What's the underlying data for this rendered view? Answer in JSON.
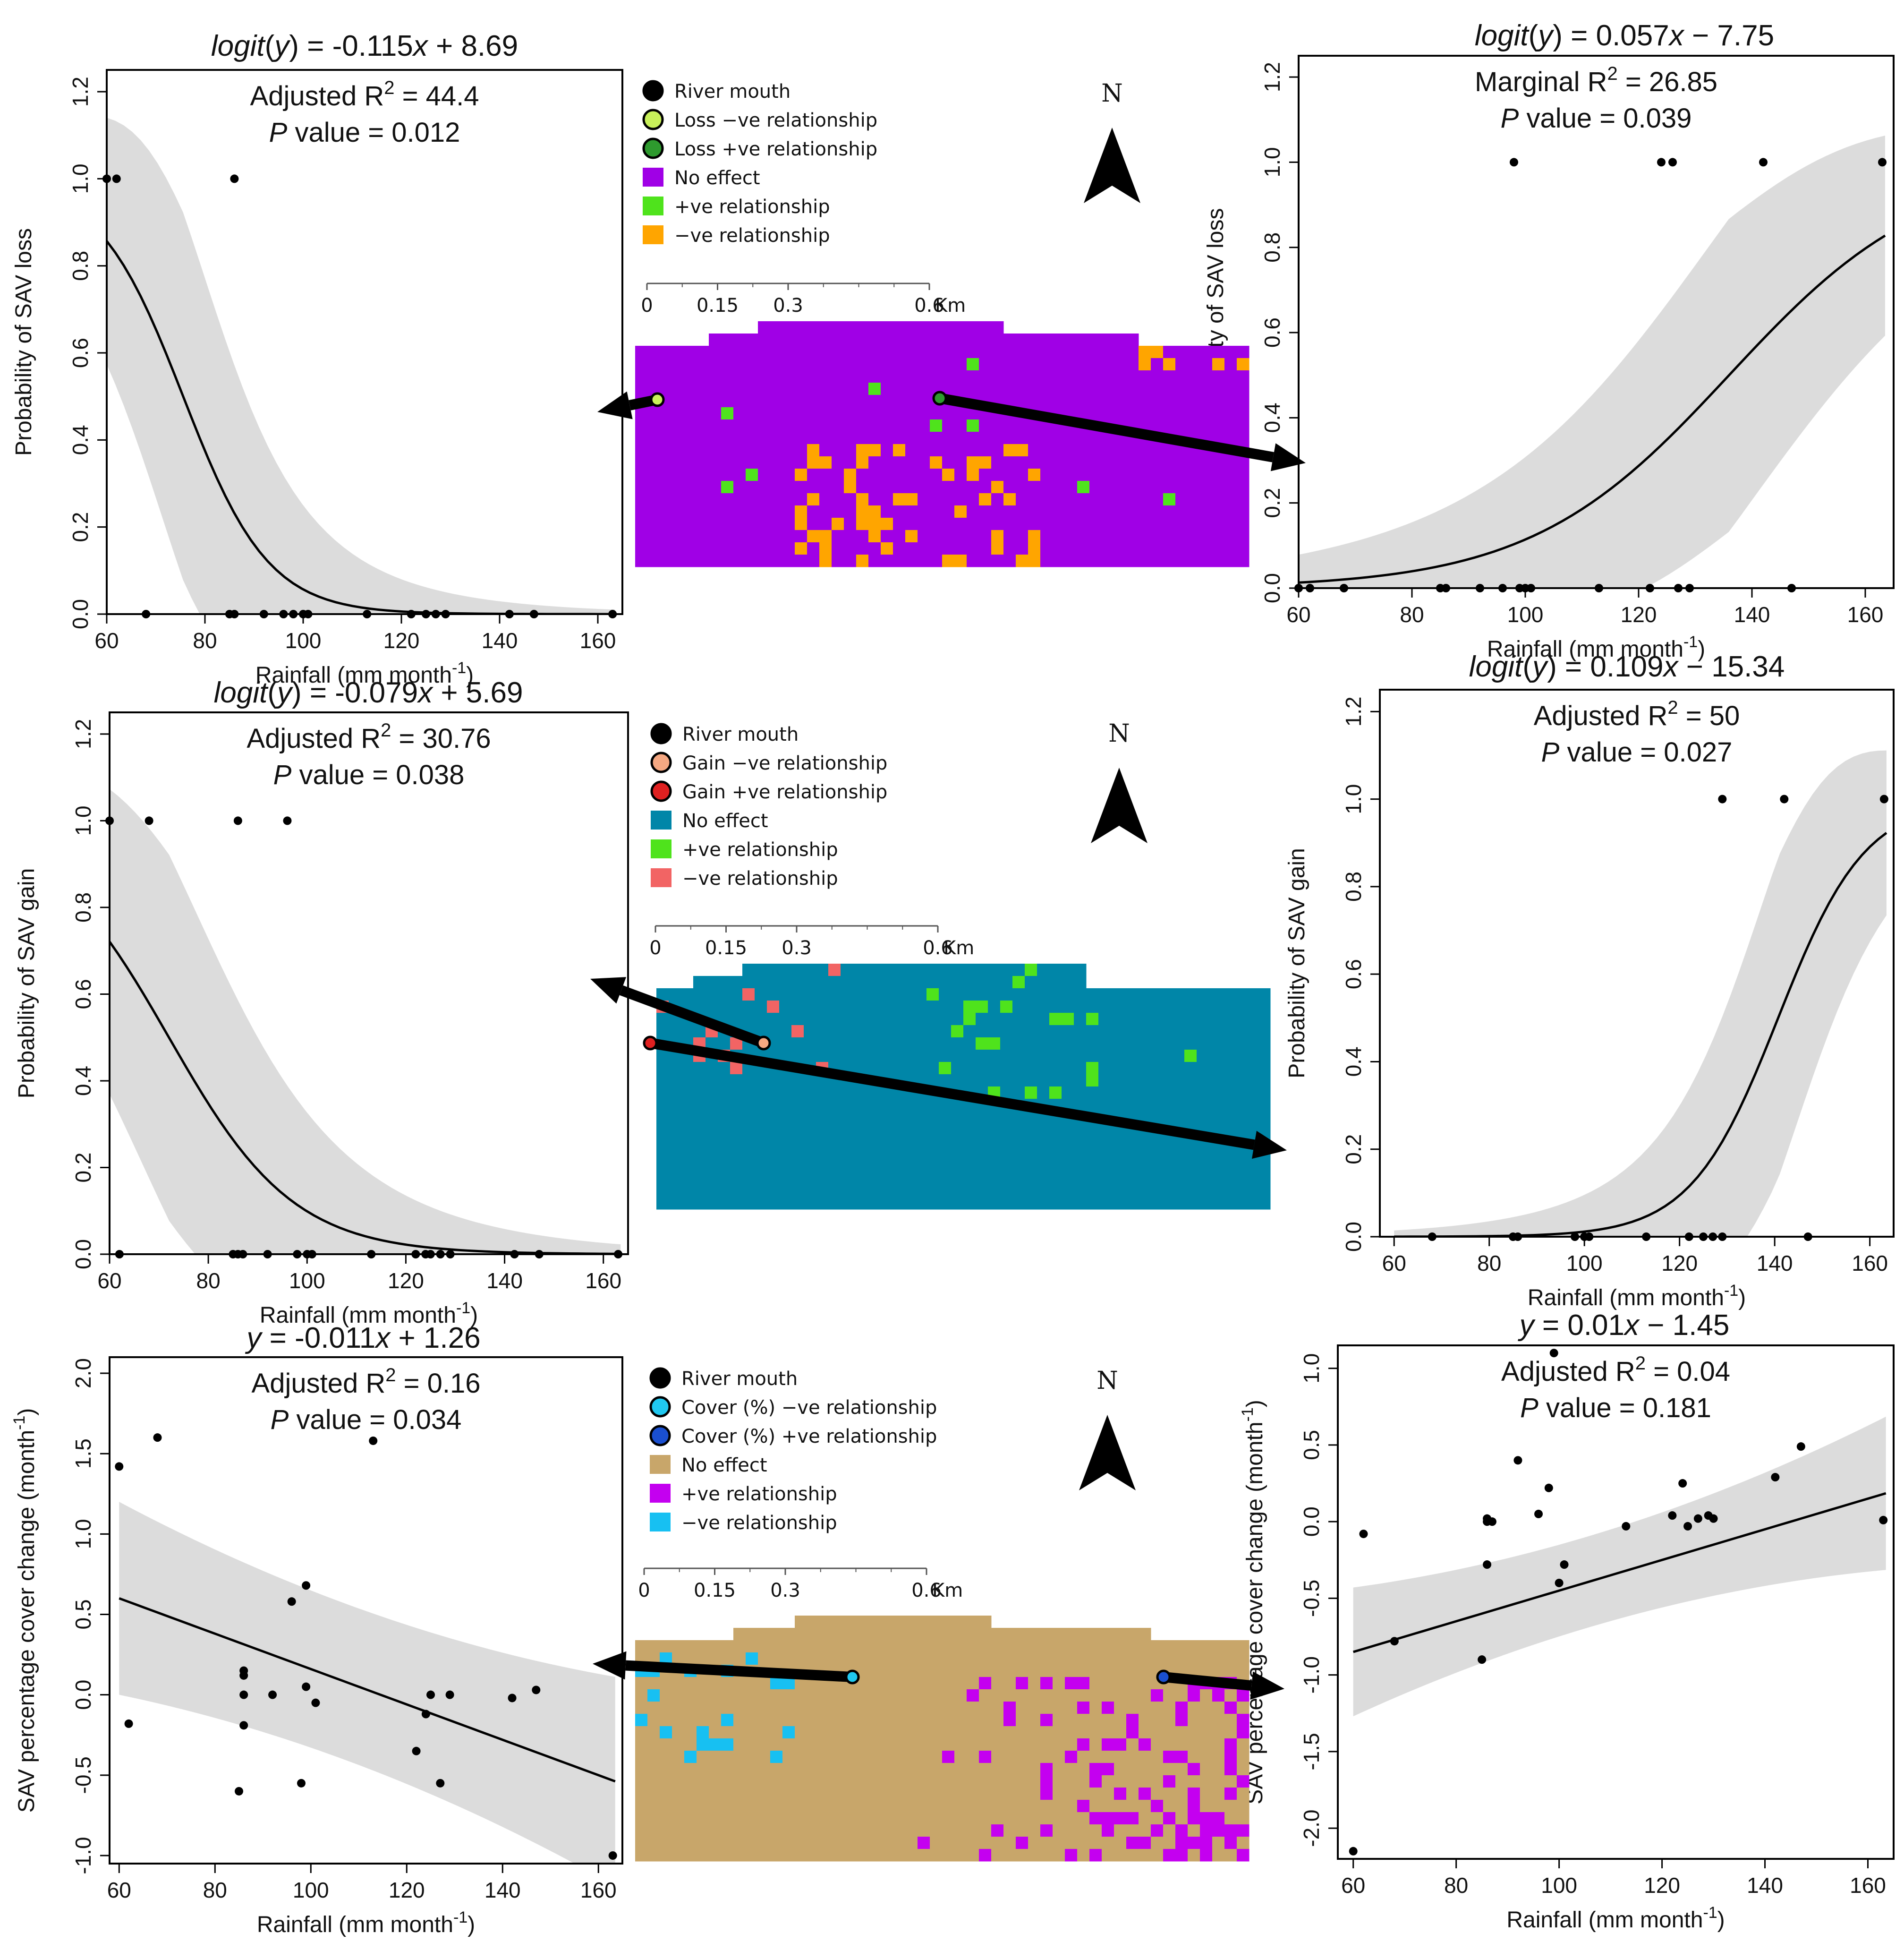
{
  "chart_data": [
    {
      "id": "p1",
      "type": "scatter",
      "title_html": "<tspan font-style=\"italic\">logit</tspan>(<tspan font-style=\"italic\">y</tspan>) = -0.115<tspan font-style=\"italic\">x</tspan> + 8.69",
      "title_text": "logit(y) = -0.115x + 8.69",
      "stat_label": "Adjusted R",
      "stat_value": "44.4",
      "p_value": "0.012",
      "xlabel": "Rainfall (mm month",
      "ylabel": "Probability of SAV loss",
      "xlim": [
        60,
        165
      ],
      "ylim": [
        0,
        1.25
      ],
      "xticks": [
        60,
        80,
        100,
        120,
        140,
        160
      ],
      "yticks": [
        0,
        0.2,
        0.4,
        0.6,
        0.8,
        1.0,
        1.2
      ],
      "ytick_labels": [
        "0.0",
        "0.2",
        "0.4",
        "0.6",
        "0.8",
        "1.0",
        "1.2"
      ],
      "curve": {
        "kind": "logistic",
        "a": 8.69,
        "b": -0.115,
        "ci_scale": 1.1
      },
      "points": [
        [
          60,
          1
        ],
        [
          62,
          1
        ],
        [
          86,
          1
        ],
        [
          68,
          0
        ],
        [
          85,
          0
        ],
        [
          86,
          0
        ],
        [
          92,
          0
        ],
        [
          96,
          0
        ],
        [
          98,
          0
        ],
        [
          100,
          0
        ],
        [
          101,
          0
        ],
        [
          113,
          0
        ],
        [
          122,
          0
        ],
        [
          125,
          0
        ],
        [
          127,
          0
        ],
        [
          129,
          0
        ],
        [
          142,
          0
        ],
        [
          147,
          0
        ],
        [
          163,
          0
        ]
      ]
    },
    {
      "id": "p2",
      "type": "scatter",
      "title_html": "<tspan font-style=\"italic\">logit</tspan>(<tspan font-style=\"italic\">y</tspan>) = 0.057<tspan font-style=\"italic\">x</tspan> − 7.75",
      "title_text": "logit(y) = 0.057x − 7.75",
      "stat_label": "Marginal R",
      "stat_value": "26.85",
      "p_value": "0.039",
      "xlabel": "Rainfall (mm month",
      "ylabel": "Probability of SAV loss",
      "xlim": [
        60,
        165
      ],
      "ylim": [
        0,
        1.25
      ],
      "xticks": [
        60,
        80,
        100,
        120,
        140,
        160
      ],
      "yticks": [
        0,
        0.2,
        0.4,
        0.6,
        0.8,
        1.0,
        1.2
      ],
      "ytick_labels": [
        "0.0",
        "0.2",
        "0.4",
        "0.6",
        "0.8",
        "1.0",
        "1.2"
      ],
      "curve": {
        "kind": "logistic",
        "a": -7.75,
        "b": 0.057,
        "ci_scale": 0.9
      },
      "points": [
        [
          98,
          1
        ],
        [
          124,
          1
        ],
        [
          126,
          1
        ],
        [
          142,
          1
        ],
        [
          163,
          1
        ],
        [
          60,
          0
        ],
        [
          62,
          0
        ],
        [
          68,
          0
        ],
        [
          85,
          0
        ],
        [
          86,
          0
        ],
        [
          92,
          0
        ],
        [
          96,
          0
        ],
        [
          99,
          0
        ],
        [
          100,
          0
        ],
        [
          101,
          0
        ],
        [
          113,
          0
        ],
        [
          122,
          0
        ],
        [
          127,
          0
        ],
        [
          129,
          0
        ],
        [
          147,
          0
        ]
      ]
    },
    {
      "id": "p3",
      "type": "scatter",
      "title_html": "<tspan font-style=\"italic\">logit</tspan>(<tspan font-style=\"italic\">y</tspan>) = -0.079<tspan font-style=\"italic\">x</tspan> + 5.69",
      "title_text": "logit(y) = -0.079x + 5.69",
      "stat_label": "Adjusted R",
      "stat_value": "30.76",
      "p_value": "0.038",
      "xlabel": "Rainfall (mm month",
      "ylabel": "Probability of SAV gain",
      "xlim": [
        60,
        165
      ],
      "ylim": [
        0,
        1.25
      ],
      "xticks": [
        60,
        80,
        100,
        120,
        140,
        160
      ],
      "yticks": [
        0,
        0.2,
        0.4,
        0.6,
        0.8,
        1.0,
        1.2
      ],
      "ytick_labels": [
        "0.0",
        "0.2",
        "0.4",
        "0.6",
        "0.8",
        "1.0",
        "1.2"
      ],
      "curve": {
        "kind": "logistic",
        "a": 5.69,
        "b": -0.079,
        "ci_scale": 1.1
      },
      "points": [
        [
          60,
          1
        ],
        [
          68,
          1
        ],
        [
          86,
          1
        ],
        [
          96,
          1
        ],
        [
          62,
          0
        ],
        [
          85,
          0
        ],
        [
          86,
          0
        ],
        [
          87,
          0
        ],
        [
          92,
          0
        ],
        [
          98,
          0
        ],
        [
          100,
          0
        ],
        [
          101,
          0
        ],
        [
          113,
          0
        ],
        [
          122,
          0
        ],
        [
          124,
          0
        ],
        [
          125,
          0
        ],
        [
          127,
          0
        ],
        [
          129,
          0
        ],
        [
          142,
          0
        ],
        [
          147,
          0
        ],
        [
          163,
          0
        ]
      ]
    },
    {
      "id": "p4",
      "type": "scatter",
      "title_html": "<tspan font-style=\"italic\">logit</tspan>(<tspan font-style=\"italic\">y</tspan>) = 0.109<tspan font-style=\"italic\">x</tspan> − 15.34",
      "title_text": "logit(y) = 0.109x − 15.34",
      "stat_label": "Adjusted R",
      "stat_value": "50",
      "p_value": "0.027",
      "xlabel": "Rainfall (mm month",
      "ylabel": "Probability of SAV gain",
      "xlim": [
        57,
        165
      ],
      "ylim": [
        0,
        1.25
      ],
      "xticks": [
        60,
        80,
        100,
        120,
        140,
        160
      ],
      "yticks": [
        0,
        0.2,
        0.4,
        0.6,
        0.8,
        1.0,
        1.2
      ],
      "ytick_labels": [
        "0.0",
        "0.2",
        "0.4",
        "0.6",
        "0.8",
        "1.0",
        "1.2"
      ],
      "curve": {
        "kind": "logistic",
        "a": -15.34,
        "b": 0.109,
        "ci_scale": 0.9
      },
      "points": [
        [
          129,
          1
        ],
        [
          142,
          1
        ],
        [
          163,
          1
        ],
        [
          68,
          0
        ],
        [
          85,
          0
        ],
        [
          86,
          0
        ],
        [
          98,
          0
        ],
        [
          100,
          0
        ],
        [
          101,
          0
        ],
        [
          113,
          0
        ],
        [
          122,
          0
        ],
        [
          125,
          0
        ],
        [
          127,
          0
        ],
        [
          129,
          0
        ],
        [
          147,
          0
        ]
      ]
    },
    {
      "id": "p5",
      "type": "scatter",
      "title_html": "<tspan font-style=\"italic\">y</tspan> = -0.011<tspan font-style=\"italic\">x</tspan> + 1.26",
      "title_text": "y = -0.011x + 1.26",
      "stat_label": "Adjusted R",
      "stat_value": "0.16",
      "p_value": "0.034",
      "xlabel": "Rainfall (mm month",
      "ylabel": "SAV percentage cover change (month",
      "xlim": [
        58,
        165
      ],
      "ylim": [
        -1.05,
        2.1
      ],
      "xticks": [
        60,
        80,
        100,
        120,
        140,
        160
      ],
      "yticks": [
        -1.0,
        -0.5,
        0.0,
        0.5,
        1.0,
        1.5,
        2.0
      ],
      "ytick_labels": [
        "-1.0",
        "-0.5",
        "0.0",
        "0.5",
        "1.0",
        "1.5",
        "2.0"
      ],
      "curve": {
        "kind": "linear",
        "a": 1.26,
        "b": -0.011,
        "band": [
          0.6,
          0.35,
          0.65
        ]
      },
      "points": [
        [
          60,
          1.42
        ],
        [
          68,
          1.6
        ],
        [
          113,
          1.58
        ],
        [
          62,
          -0.18
        ],
        [
          86,
          0.15
        ],
        [
          86,
          0.12
        ],
        [
          86,
          0.0
        ],
        [
          86,
          -0.19
        ],
        [
          85,
          -0.6
        ],
        [
          92,
          0.0
        ],
        [
          96,
          0.58
        ],
        [
          99,
          0.68
        ],
        [
          98,
          -0.55
        ],
        [
          99,
          0.05
        ],
        [
          101,
          -0.05
        ],
        [
          122,
          -0.35
        ],
        [
          124,
          -0.12
        ],
        [
          125,
          0.0
        ],
        [
          127,
          -0.55
        ],
        [
          129,
          0.0
        ],
        [
          142,
          -0.02
        ],
        [
          147,
          0.03
        ],
        [
          163,
          -1.0
        ]
      ]
    },
    {
      "id": "p6",
      "type": "scatter",
      "title_html": "<tspan font-style=\"italic\">y</tspan> = 0.01<tspan font-style=\"italic\">x</tspan> − 1.45",
      "title_text": "y = 0.01x − 1.45",
      "stat_label": "Adjusted R",
      "stat_value": "0.04",
      "p_value": "0.181",
      "xlabel": "Rainfall (mm month",
      "ylabel": "SAV percentage cover change (month",
      "xlim": [
        57,
        165
      ],
      "ylim": [
        -2.2,
        1.15
      ],
      "xticks": [
        60,
        80,
        100,
        120,
        140,
        160
      ],
      "yticks": [
        -2.0,
        -1.5,
        -1.0,
        -0.5,
        0.0,
        0.5,
        1.0
      ],
      "ytick_labels": [
        "-2.0",
        "-1.5",
        "-1.0",
        "-0.5",
        "0.0",
        "0.5",
        "1.0"
      ],
      "curve": {
        "kind": "linear",
        "a": -1.45,
        "b": 0.01,
        "band": [
          0.42,
          0.14,
          0.5
        ]
      },
      "points": [
        [
          60,
          -2.15
        ],
        [
          62,
          -0.08
        ],
        [
          68,
          -0.78
        ],
        [
          85,
          -0.9
        ],
        [
          86,
          0.0
        ],
        [
          86,
          0.02
        ],
        [
          86,
          -0.28
        ],
        [
          87,
          0.0
        ],
        [
          92,
          0.4
        ],
        [
          96,
          0.05
        ],
        [
          98,
          0.22
        ],
        [
          99,
          1.1
        ],
        [
          100,
          -0.4
        ],
        [
          101,
          -0.28
        ],
        [
          113,
          -0.03
        ],
        [
          122,
          0.04
        ],
        [
          124,
          0.25
        ],
        [
          125,
          -0.03
        ],
        [
          127,
          0.02
        ],
        [
          129,
          0.04
        ],
        [
          130,
          0.02
        ],
        [
          142,
          0.29
        ],
        [
          147,
          0.49
        ],
        [
          163,
          0.01
        ]
      ]
    }
  ],
  "superscripts": {
    "r_exp": "2",
    "unit_exp": "-1",
    "ylabel_close": ")"
  },
  "p_label_italic": "P",
  "p_label_rest": " value = ",
  "maps": [
    {
      "id": "m1",
      "legend": [
        {
          "kind": "dot",
          "fill": "#000000",
          "stroke": "#000000",
          "label": "River mouth"
        },
        {
          "kind": "dot",
          "fill": "#c8f05a",
          "stroke": "#000000",
          "label": "Loss −ve relationship"
        },
        {
          "kind": "dot",
          "fill": "#2e9a2e",
          "stroke": "#000000",
          "label": "Loss +ve relationship"
        },
        {
          "kind": "sq",
          "fill": "#a000e6",
          "label": "No effect"
        },
        {
          "kind": "sq",
          "fill": "#4fe31c",
          "label": "+ve relationship"
        },
        {
          "kind": "sq",
          "fill": "#ffa500",
          "label": "−ve relationship"
        }
      ],
      "scale_labels": [
        "0",
        "0.15",
        "0.3",
        "0.6",
        "Km"
      ],
      "north": "N",
      "base_color": "#a000e6",
      "accent_colors": {
        "a": "#4fe31c",
        "b": "#ffa500"
      },
      "seed": 11
    },
    {
      "id": "m2",
      "legend": [
        {
          "kind": "dot",
          "fill": "#000000",
          "stroke": "#000000",
          "label": "River mouth"
        },
        {
          "kind": "dot",
          "fill": "#f5a882",
          "stroke": "#000000",
          "label": "Gain −ve relationship"
        },
        {
          "kind": "dot",
          "fill": "#e02020",
          "stroke": "#000000",
          "label": "Gain +ve relationship"
        },
        {
          "kind": "sq",
          "fill": "#0086a8",
          "label": "No effect"
        },
        {
          "kind": "sq",
          "fill": "#4fe31c",
          "label": "+ve relationship"
        },
        {
          "kind": "sq",
          "fill": "#f26464",
          "label": "−ve relationship"
        }
      ],
      "scale_labels": [
        "0",
        "0.15",
        "0.3",
        "0.6",
        "Km"
      ],
      "north": "N",
      "base_color": "#0086a8",
      "accent_colors": {
        "a": "#4fe31c",
        "b": "#f26464"
      },
      "seed": 23
    },
    {
      "id": "m3",
      "legend": [
        {
          "kind": "dot",
          "fill": "#000000",
          "stroke": "#000000",
          "label": "River mouth"
        },
        {
          "kind": "dot",
          "fill": "#20c8f0",
          "stroke": "#000000",
          "label": "Cover (%) −ve relationship"
        },
        {
          "kind": "dot",
          "fill": "#1a4fd0",
          "stroke": "#000000",
          "label": "Cover (%) +ve relationship"
        },
        {
          "kind": "sq",
          "fill": "#c8a66a",
          "label": "No effect"
        },
        {
          "kind": "sq",
          "fill": "#c400f0",
          "label": "+ve relationship"
        },
        {
          "kind": "sq",
          "fill": "#17c0f2",
          "label": "−ve relationship"
        }
      ],
      "scale_labels": [
        "0",
        "0.15",
        "0.3",
        "0.6",
        "Km"
      ],
      "north": "N",
      "base_color": "#c8a66a",
      "accent_colors": {
        "a": "#c400f0",
        "b": "#17c0f2"
      },
      "seed": 37
    }
  ]
}
